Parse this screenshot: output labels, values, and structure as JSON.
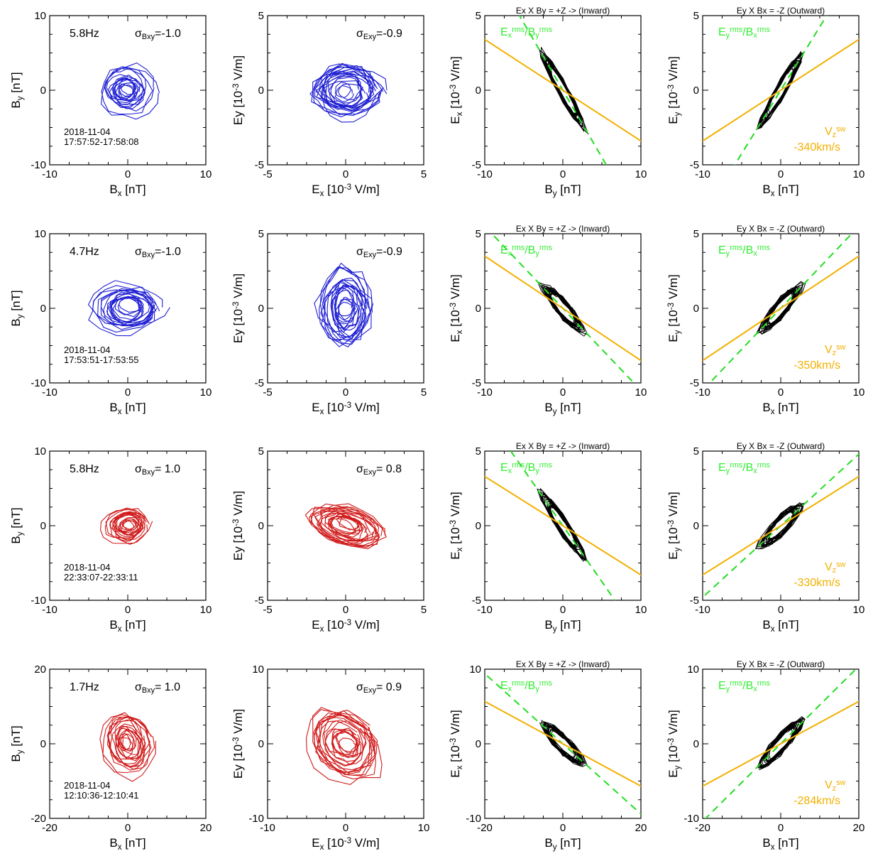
{
  "colors": {
    "blue": "#1f1fd2",
    "red": "#d01a1a",
    "black": "#000000",
    "green_dashed": "#22dd22",
    "gold": "#f2b000",
    "green_text": "#33ee33",
    "gold_text": "#f2b000"
  },
  "rows": [
    {
      "freq": "5.8Hz",
      "sigma_b": "=-1.0",
      "sigma_e": "=-0.9",
      "date": "2018-11-04",
      "time": "17:57:52-17:58:08",
      "speed": "-340km/s",
      "color": "blue",
      "b_lim": 10,
      "e_lim": 5,
      "b_ticks": [
        "-10",
        "0",
        "10"
      ],
      "e_ticks": [
        "-5",
        "0",
        "5"
      ],
      "b_loop": {
        "rx": 3.3,
        "ry": 3.2,
        "tilt": 0
      },
      "e_loop": {
        "rx": 2.1,
        "ry": 1.7,
        "tilt": 0
      },
      "ex_by_slope": -0.9,
      "ey_bx_slope": 0.85,
      "vsw_slope": 0.34
    },
    {
      "freq": "4.7Hz",
      "sigma_b": "=-1.0",
      "sigma_e": "=-0.9",
      "date": "2018-11-04",
      "time": "17:53:51-17:53:55",
      "speed": "-350km/s",
      "color": "blue",
      "b_lim": 10,
      "e_lim": 5,
      "b_ticks": [
        "-10",
        "0",
        "10"
      ],
      "e_ticks": [
        "-5",
        "0",
        "5"
      ],
      "b_loop": {
        "rx": 4.3,
        "ry": 3.3,
        "tilt": 0
      },
      "e_loop": {
        "rx": 1.6,
        "ry": 2.6,
        "tilt": 0
      },
      "ex_by_slope": -0.55,
      "ey_bx_slope": 0.55,
      "vsw_slope": 0.35
    },
    {
      "freq": "5.8Hz",
      "sigma_b": "= 1.0",
      "sigma_e": "= 0.8",
      "date": "2018-11-04",
      "time": "22:33:07-22:33:11",
      "speed": "-330km/s",
      "color": "red",
      "b_lim": 10,
      "e_lim": 5,
      "b_ticks": [
        "-10",
        "0",
        "10"
      ],
      "e_ticks": [
        "-5",
        "0",
        "5"
      ],
      "b_loop": {
        "rx": 2.9,
        "ry": 2.3,
        "tilt": 10
      },
      "e_loop": {
        "rx": 2.4,
        "ry": 1.3,
        "tilt": -18
      },
      "ex_by_slope": -0.75,
      "ey_bx_slope": 0.48,
      "vsw_slope": 0.33
    },
    {
      "freq": "1.7Hz",
      "sigma_b": "= 1.0",
      "sigma_e": "= 0.9",
      "date": "2018-11-04",
      "time": "12:10:36-12:10:41",
      "speed": "-284km/s",
      "color": "red",
      "b_lim": 20,
      "e_lim": 10,
      "b_ticks": [
        "-20",
        "0",
        "20"
      ],
      "e_ticks": [
        "-10",
        "0",
        "10"
      ],
      "b_loop": {
        "rx": 6.0,
        "ry": 8.5,
        "tilt": 15
      },
      "e_loop": {
        "rx": 3.9,
        "ry": 4.8,
        "tilt": 38
      },
      "ex_by_slope": -0.47,
      "ey_bx_slope": 0.52,
      "vsw_slope": 0.284
    }
  ],
  "panel_labels": {
    "bx_xlabel": "B_x [nT]",
    "by_ylabel": "B_y [nT]",
    "ex_xlabel": "E_x [10^-3 V/m]",
    "ey_ylabel": "Ey [10^-3 V/m]",
    "by_xlabel": "B_y [nT]",
    "ex_ylabel": "E_x [10^-3 V/m]",
    "ey2_ylabel": "E_y [10^-3 V/m]",
    "title3": "Ex X By = +Z -> (Inward)",
    "title4": "Ey X Bx = -Z (Outward)",
    "ratio3": "E_x^rms/B_y^rms",
    "ratio4": "E_y^rms/B_x^rms",
    "vsw": "V_z^sw"
  },
  "chart_data": [
    {
      "type": "scatter",
      "title": "",
      "xlabel": "B_x [nT]",
      "ylabel": "B_y [nT]",
      "rows": [
        "5.8Hz σBxy=-1.0",
        "4.7Hz σBxy=-1.0",
        "5.8Hz σBxy= 1.0",
        "1.7Hz σBxy= 1.0"
      ],
      "xlim": [
        [
          -10,
          10
        ],
        [
          -10,
          10
        ],
        [
          -10,
          10
        ],
        [
          -20,
          20
        ]
      ],
      "ylim": [
        [
          -10,
          10
        ],
        [
          -10,
          10
        ],
        [
          -10,
          10
        ],
        [
          -20,
          20
        ]
      ]
    },
    {
      "type": "scatter",
      "title": "",
      "xlabel": "E_x [10^-3 V/m]",
      "ylabel": "Ey [10^-3 V/m]",
      "rows": [
        "σExy=-0.9",
        "σExy=-0.9",
        "σExy= 0.8",
        "σExy= 0.9"
      ],
      "xlim": [
        [
          -5,
          5
        ],
        [
          -5,
          5
        ],
        [
          -5,
          5
        ],
        [
          -10,
          10
        ]
      ],
      "ylim": [
        [
          -5,
          5
        ],
        [
          -5,
          5
        ],
        [
          -5,
          5
        ],
        [
          -10,
          10
        ]
      ]
    },
    {
      "type": "line",
      "title": "Ex X By = +Z -> (Inward)",
      "xlabel": "B_y [nT]",
      "ylabel": "E_x [10^-3 V/m]",
      "series": [
        {
          "name": "E_x^rms/B_y^rms",
          "slopes": [
            -0.9,
            -0.55,
            -0.75,
            -0.47
          ]
        }
      ],
      "xlim": [
        [
          -10,
          10
        ],
        [
          -10,
          10
        ],
        [
          -10,
          10
        ],
        [
          -20,
          20
        ]
      ],
      "ylim": [
        [
          -5,
          5
        ],
        [
          -5,
          5
        ],
        [
          -5,
          5
        ],
        [
          -10,
          10
        ]
      ]
    },
    {
      "type": "line",
      "title": "Ey X Bx = -Z (Outward)",
      "xlabel": "B_x [nT]",
      "ylabel": "E_y [10^-3 V/m]",
      "series": [
        {
          "name": "E_y^rms/B_x^rms",
          "slopes": [
            0.85,
            0.55,
            0.48,
            0.52
          ]
        },
        {
          "name": "V_z^sw",
          "values_km_s": [
            -340,
            -350,
            -330,
            -284
          ]
        }
      ],
      "xlim": [
        [
          -10,
          10
        ],
        [
          -10,
          10
        ],
        [
          -10,
          10
        ],
        [
          -20,
          20
        ]
      ],
      "ylim": [
        [
          -5,
          5
        ],
        [
          -5,
          5
        ],
        [
          -5,
          5
        ],
        [
          -10,
          10
        ]
      ]
    }
  ]
}
